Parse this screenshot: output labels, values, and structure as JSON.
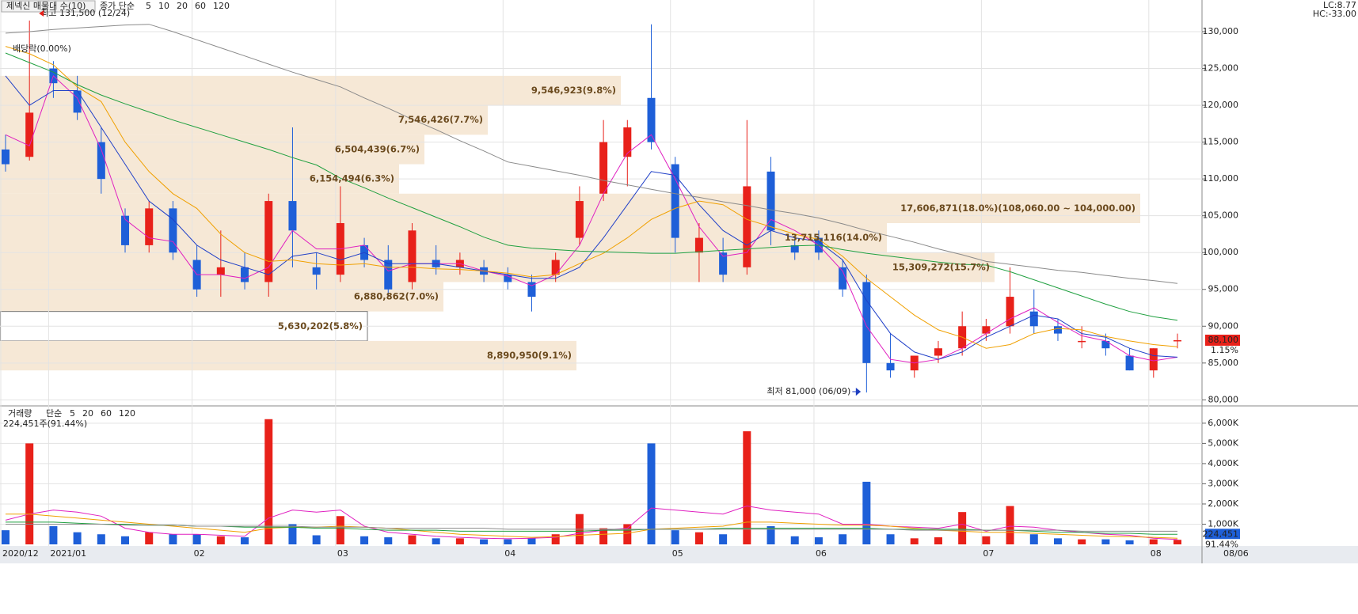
{
  "chart_data": [
    {
      "type": "candlestick",
      "title": "제넥신 매물대 수(10)",
      "legend_title": "종가 단순",
      "categories": [
        "2020/12",
        null,
        "2021/01",
        null,
        null,
        null,
        null,
        null,
        "02",
        null,
        null,
        null,
        null,
        null,
        "03",
        null,
        null,
        null,
        null,
        null,
        null,
        "04",
        null,
        null,
        null,
        null,
        null,
        null,
        "05",
        null,
        null,
        null,
        null,
        null,
        "06",
        null,
        null,
        null,
        null,
        null,
        null,
        "07",
        null,
        null,
        null,
        null,
        null,
        null,
        "08",
        null
      ],
      "cursor_label": "08/06",
      "up_color": "#e8211a",
      "down_color": "#1e5fd8",
      "open": [
        114000,
        113000,
        125000,
        122000,
        115000,
        105000,
        101000,
        106000,
        99000,
        97000,
        98000,
        96000,
        107000,
        98000,
        97000,
        101000,
        99000,
        96000,
        99000,
        98000,
        98000,
        97000,
        96000,
        97000,
        102000,
        108000,
        113000,
        121000,
        112000,
        100000,
        100000,
        98000,
        111000,
        101000,
        102000,
        98000,
        96000,
        85000,
        84000,
        86000,
        87000,
        89000,
        90000,
        92000,
        90000,
        88000,
        88000,
        86000,
        84000,
        88000
      ],
      "high": [
        116000,
        131500,
        126000,
        124000,
        117000,
        106000,
        107000,
        107000,
        101000,
        103000,
        100000,
        108000,
        117000,
        100000,
        109000,
        102000,
        101000,
        104000,
        101000,
        100000,
        99000,
        98000,
        97000,
        100000,
        109000,
        118000,
        118000,
        131000,
        113000,
        104000,
        102000,
        118000,
        113000,
        102000,
        103000,
        99000,
        97000,
        89000,
        86000,
        88000,
        92000,
        91000,
        98000,
        95000,
        91000,
        90000,
        89000,
        87000,
        87000,
        89000
      ],
      "low": [
        111000,
        112500,
        121000,
        118000,
        108000,
        100000,
        100000,
        99000,
        94000,
        94000,
        95000,
        94000,
        98000,
        95000,
        96000,
        98000,
        94000,
        95000,
        97000,
        97000,
        96000,
        95000,
        92000,
        96000,
        101000,
        107000,
        109000,
        114000,
        100000,
        96000,
        96000,
        97000,
        101000,
        99000,
        99000,
        94000,
        81000,
        83000,
        83000,
        85000,
        86000,
        88000,
        89000,
        89000,
        88000,
        87000,
        86000,
        84000,
        83000,
        87000
      ],
      "close": [
        112000,
        119000,
        123000,
        119000,
        110000,
        101000,
        106000,
        100000,
        95000,
        98000,
        96000,
        107000,
        103000,
        97000,
        104000,
        99000,
        95000,
        103000,
        98000,
        99000,
        97000,
        96000,
        94000,
        99000,
        107000,
        115000,
        117000,
        115000,
        102000,
        102000,
        97000,
        109000,
        103000,
        100000,
        100000,
        95000,
        85000,
        84000,
        86000,
        87000,
        90000,
        90000,
        94000,
        90000,
        89000,
        88000,
        87000,
        84000,
        87000,
        88100
      ],
      "series": [
        {
          "name": "5",
          "color": "#e020c0",
          "values": [
            116000,
            114500,
            124000,
            121000,
            114000,
            104500,
            102000,
            101500,
            97000,
            97000,
            96500,
            98000,
            103000,
            100500,
            100500,
            101000,
            97500,
            98500,
            98500,
            98500,
            97500,
            96800,
            95500,
            97000,
            101000,
            108000,
            113500,
            116000,
            110000,
            103500,
            99500,
            100000,
            104500,
            103000,
            101000,
            97500,
            90000,
            85500,
            85000,
            85500,
            87000,
            89000,
            91000,
            92500,
            90500,
            88700,
            88000,
            86000,
            85300,
            85800
          ]
        },
        {
          "name": "10",
          "color": "#2040c8",
          "values": [
            124000,
            120000,
            122000,
            122000,
            117000,
            112000,
            107000,
            104500,
            101000,
            99000,
            98000,
            97000,
            99500,
            100000,
            99000,
            100000,
            98500,
            98500,
            98500,
            98000,
            97500,
            97000,
            96500,
            96500,
            98000,
            102000,
            106500,
            111000,
            110500,
            106500,
            103000,
            101000,
            103000,
            102000,
            101500,
            99000,
            93500,
            89000,
            86500,
            85500,
            86500,
            88500,
            90000,
            91500,
            91000,
            89000,
            88500,
            87000,
            86000,
            85800
          ]
        },
        {
          "name": "20",
          "color": "#f0a000",
          "values": [
            128000,
            127000,
            125500,
            122500,
            120500,
            115000,
            111000,
            108000,
            106000,
            102500,
            100000,
            98800,
            99000,
            98500,
            98300,
            98500,
            98000,
            98000,
            97800,
            97700,
            97500,
            97200,
            96700,
            97000,
            98500,
            99900,
            102000,
            104500,
            106000,
            107000,
            106500,
            104500,
            103500,
            102500,
            101800,
            99500,
            96500,
            94000,
            91500,
            89500,
            88500,
            87000,
            87500,
            89000,
            89700,
            89500,
            88600,
            88000,
            87500,
            87200
          ]
        },
        {
          "name": "60",
          "color": "#20a040",
          "values": [
            127100,
            125800,
            124500,
            122800,
            121400,
            120200,
            119100,
            118000,
            117000,
            116000,
            115000,
            114000,
            112900,
            111900,
            110100,
            108800,
            107400,
            106100,
            104800,
            103500,
            102100,
            101000,
            100600,
            100400,
            100200,
            100100,
            100000,
            99900,
            99900,
            100100,
            100300,
            100500,
            100700,
            100900,
            101000,
            100400,
            99900,
            99500,
            99100,
            98700,
            98400,
            98300,
            97400,
            96300,
            95200,
            94100,
            93000,
            92000,
            91300,
            90800
          ]
        },
        {
          "name": "120",
          "color": "#8a8a8a",
          "values": [
            129800,
            130000,
            130300,
            130500,
            130700,
            130900,
            131000,
            130000,
            128900,
            127800,
            126700,
            125600,
            124500,
            123500,
            122500,
            121000,
            119600,
            118100,
            116700,
            115200,
            113800,
            112300,
            111700,
            111100,
            110500,
            109800,
            109200,
            108600,
            108000,
            107500,
            106900,
            106400,
            105800,
            105300,
            104700,
            103900,
            103000,
            102200,
            101400,
            100500,
            99700,
            98800,
            98400,
            98000,
            97600,
            97300,
            96900,
            96500,
            96200,
            95800
          ]
        }
      ],
      "bands": [
        {
          "high": 124000,
          "low": 120000,
          "percent": 9.8,
          "label": "9,546,923(9.8%)"
        },
        {
          "high": 120000,
          "low": 116000,
          "percent": 7.7,
          "label": "7,546,426(7.7%)"
        },
        {
          "high": 116000,
          "low": 112000,
          "percent": 6.7,
          "label": "6,504,439(6.7%)"
        },
        {
          "high": 112000,
          "low": 108000,
          "percent": 6.3,
          "label": "6,154,494(6.3%)"
        },
        {
          "high": 108000,
          "low": 104000,
          "percent": 18.0,
          "label": "17,606,871(18.0%)(108,060.00 ~ 104,000.00)"
        },
        {
          "high": 104000,
          "low": 100000,
          "percent": 14.0,
          "label": "13,715,116(14.0%)"
        },
        {
          "high": 100000,
          "low": 96000,
          "percent": 15.7,
          "label": "15,309,272(15.7%)"
        },
        {
          "high": 96000,
          "low": 92000,
          "percent": 7.0,
          "label": "6,880,862(7.0%)"
        },
        {
          "high": 92000,
          "low": 88000,
          "percent": 5.8,
          "label": "5,630,202(5.8%)"
        },
        {
          "high": 88000,
          "low": 84000,
          "percent": 9.1,
          "label": "8,890,950(9.1%)"
        }
      ],
      "highlight_band": 8,
      "high_note": {
        "text": "최고 131,500 (12/24)",
        "index": 1,
        "value": 131500
      },
      "low_note": {
        "text": "최저 81,000 (06/09)",
        "index": 36,
        "value": 81000
      },
      "dividend_note": "배당락(0.00%)",
      "lc_label": "LC:8.77",
      "hc_label": "HC:-33.00",
      "last_label": {
        "value": 88100,
        "label": "88,100"
      },
      "change_label": {
        "value": 1.15,
        "label": "1.15%"
      },
      "ylim": [
        79500,
        134300
      ],
      "yticks": [
        {
          "value": 80000,
          "label": "80,000"
        },
        {
          "value": 85000,
          "label": "85,000"
        },
        {
          "value": 90000,
          "label": "90,000"
        },
        {
          "value": 95000,
          "label": "95,000"
        },
        {
          "value": 100000,
          "label": "100,000"
        },
        {
          "value": 105000,
          "label": "105,000"
        },
        {
          "value": 110000,
          "label": "110,000"
        },
        {
          "value": 115000,
          "label": "115,000"
        },
        {
          "value": 120000,
          "label": "120,000"
        },
        {
          "value": 125000,
          "label": "125,000"
        },
        {
          "value": 130000,
          "label": "130,000"
        }
      ],
      "grid": true
    },
    {
      "type": "bar",
      "title": "거래량",
      "legend_title": "단순",
      "subtitle": "224,451주(91.44%)",
      "values": [
        700,
        5000,
        900,
        600,
        500,
        400,
        600,
        500,
        500,
        400,
        350,
        6200,
        1000,
        450,
        1400,
        400,
        350,
        450,
        300,
        300,
        250,
        250,
        300,
        500,
        1500,
        800,
        1000,
        5000,
        700,
        600,
        500,
        5600,
        900,
        400,
        350,
        500,
        3100,
        500,
        300,
        350,
        1600,
        400,
        1900,
        500,
        300,
        250,
        250,
        200,
        250,
        224.451
      ],
      "series": [
        {
          "name": "5",
          "color": "#e020c0",
          "values": [
            1200,
            1500,
            1700,
            1600,
            1400,
            800,
            600,
            500,
            500,
            450,
            400,
            1300,
            1700,
            1600,
            1700,
            900,
            600,
            500,
            400,
            350,
            300,
            280,
            300,
            350,
            550,
            700,
            800,
            1800,
            1700,
            1600,
            1500,
            1900,
            1700,
            1600,
            1500,
            1000,
            1000,
            900,
            850,
            800,
            1000,
            650,
            900,
            850,
            700,
            600,
            500,
            450,
            300,
            240
          ]
        },
        {
          "name": "20",
          "color": "#f0a000",
          "values": [
            1500,
            1500,
            1400,
            1300,
            1200,
            1100,
            1000,
            900,
            800,
            700,
            600,
            800,
            850,
            850,
            900,
            850,
            800,
            700,
            600,
            500,
            450,
            400,
            350,
            380,
            450,
            500,
            550,
            750,
            800,
            850,
            900,
            1100,
            1100,
            1050,
            1000,
            950,
            950,
            900,
            800,
            700,
            650,
            600,
            600,
            550,
            500,
            450,
            400,
            380,
            350,
            300
          ]
        },
        {
          "name": "60",
          "color": "#20a040",
          "values": [
            1100,
            1100,
            1100,
            1050,
            1000,
            1000,
            950,
            950,
            900,
            900,
            850,
            850,
            850,
            800,
            800,
            750,
            700,
            700,
            700,
            650,
            650,
            650,
            650,
            650,
            650,
            700,
            700,
            750,
            750,
            750,
            800,
            800,
            800,
            800,
            800,
            800,
            800,
            750,
            750,
            750,
            750,
            700,
            700,
            650,
            600,
            600,
            550,
            550,
            500,
            500
          ]
        },
        {
          "name": "120",
          "color": "#8a8a8a",
          "values": [
            1000,
            1000,
            1000,
            1000,
            1000,
            950,
            950,
            950,
            900,
            900,
            900,
            900,
            900,
            850,
            850,
            850,
            800,
            800,
            800,
            800,
            800,
            750,
            750,
            750,
            750,
            750,
            750,
            750,
            750,
            750,
            750,
            750,
            750,
            750,
            750,
            750,
            750,
            750,
            700,
            700,
            700,
            700,
            700,
            700,
            700,
            650,
            650,
            650,
            650,
            650
          ]
        }
      ],
      "last_label": {
        "value": 224.451,
        "label": "224,451"
      },
      "ratio_label": {
        "value": 91.44,
        "label": "91.44%"
      },
      "ylim": [
        0,
        6700
      ],
      "yticks": [
        {
          "value": 1000,
          "label": "1,000K"
        },
        {
          "value": 2000,
          "label": "2,000K"
        },
        {
          "value": 3000,
          "label": "3,000K"
        },
        {
          "value": 4000,
          "label": "4,000K"
        },
        {
          "value": 5000,
          "label": "5,000K"
        },
        {
          "value": 6000,
          "label": "6,000K"
        }
      ],
      "grid": true
    }
  ]
}
